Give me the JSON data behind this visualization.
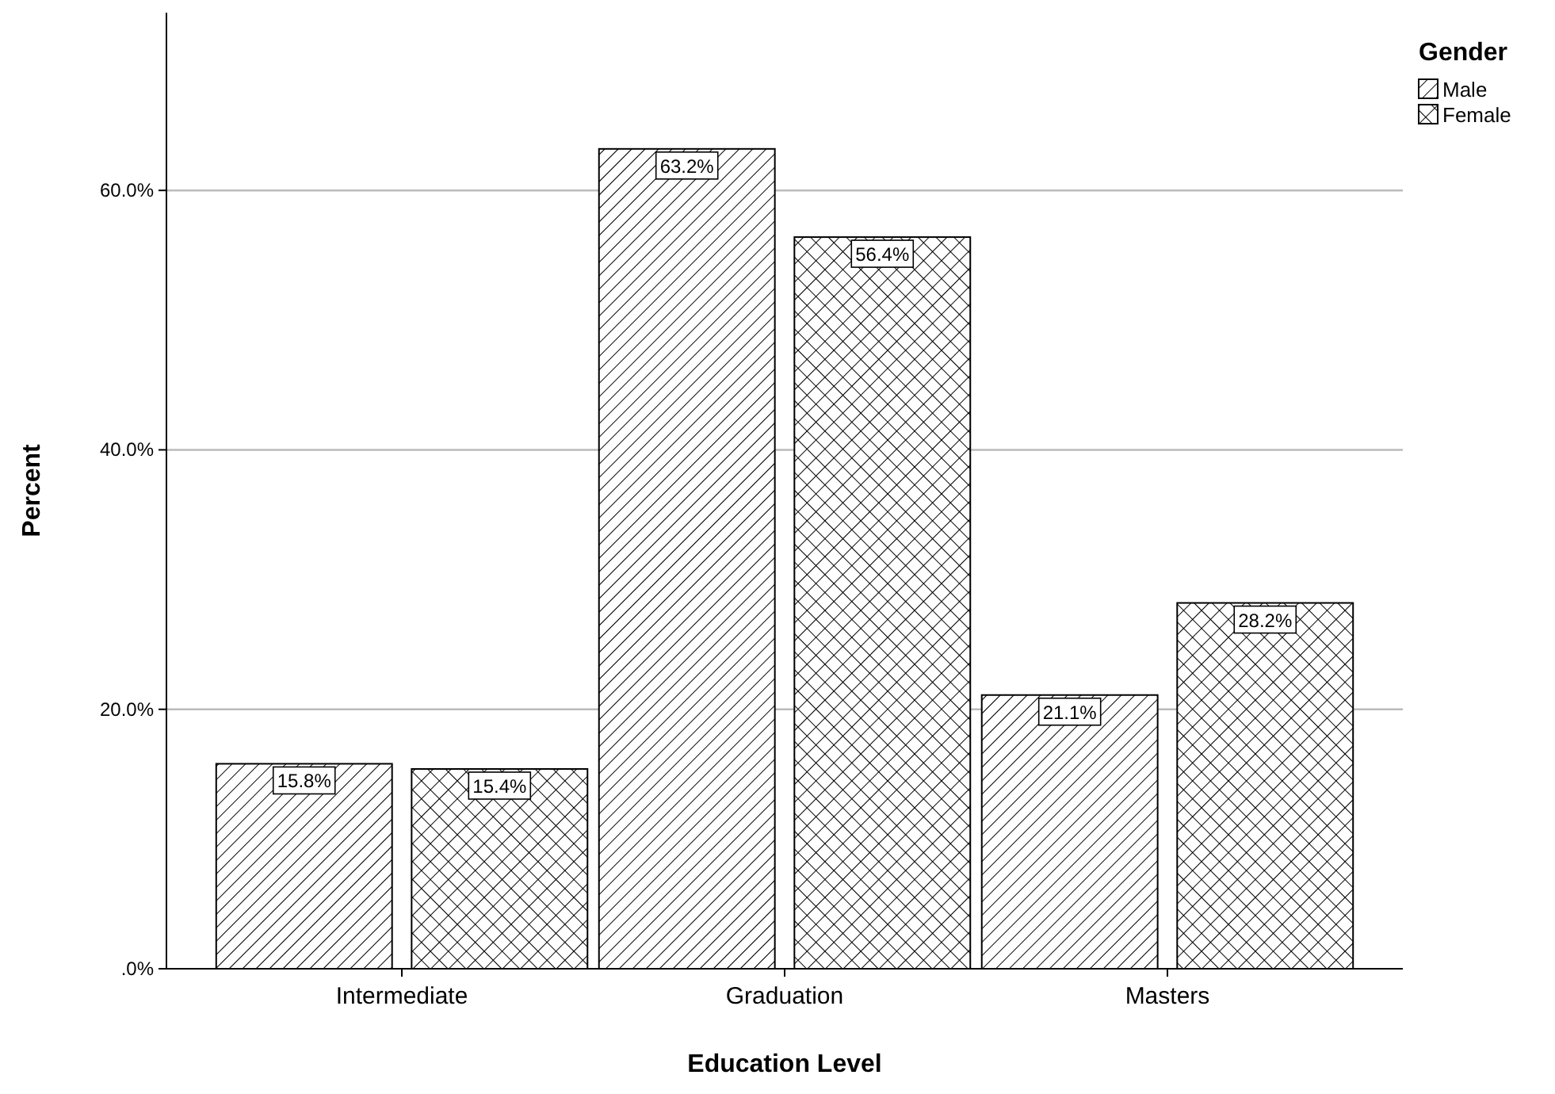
{
  "chart_data": {
    "type": "bar",
    "xlabel": "Education Level",
    "ylabel": "Percent",
    "legend_title": "Gender",
    "legend": "top right",
    "grid": "y",
    "categories": [
      "Intermediate",
      "Graduation",
      "Masters"
    ],
    "series": [
      {
        "name": "Male",
        "color": "#000000",
        "values": [
          15.8,
          63.2,
          21.1
        ],
        "value_labels": [
          "15.8%",
          "63.2%",
          "21.1%"
        ]
      },
      {
        "name": "Female",
        "color": "#000000",
        "values": [
          15.4,
          56.4,
          28.2
        ],
        "value_labels": [
          "15.4%",
          "56.4%",
          "28.2%"
        ]
      }
    ],
    "ylim": [
      0,
      73.7
    ],
    "yticks": [
      {
        "value": 0,
        "label": ".0%"
      },
      {
        "value": 20,
        "label": "20.0%"
      },
      {
        "value": 40,
        "label": "40.0%"
      },
      {
        "value": 60,
        "label": "60.0%"
      }
    ]
  }
}
